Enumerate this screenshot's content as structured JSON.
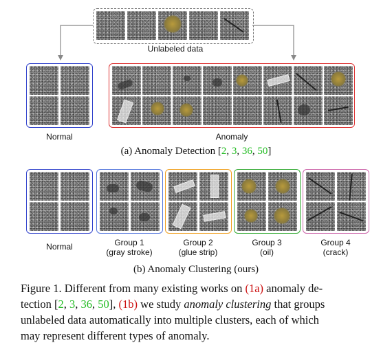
{
  "top": {
    "label": "Unlabeled data"
  },
  "detection": {
    "normal_label": "Normal",
    "anomaly_label": "Anomaly",
    "caption": "(a) Anomaly Detection [",
    "caption_end": "]",
    "citations": [
      "2",
      "3",
      "36",
      "50"
    ]
  },
  "clustering": {
    "normal_label": "Normal",
    "groups": [
      {
        "line1": "Group 1",
        "line2": "(gray stroke)"
      },
      {
        "line1": "Group 2",
        "line2": "(glue strip)"
      },
      {
        "line1": "Group 3",
        "line2": "(oil)"
      },
      {
        "line1": "Group 4",
        "line2": "(crack)"
      }
    ],
    "caption": "(b) Anomaly Clustering (ours)"
  },
  "figure_caption": {
    "fig_label": "Figure 1.",
    "p1": " Different from many existing works on ",
    "ref_a": "(1a)",
    "p2": " anomaly de-",
    "p3": "tection [",
    "p4": "], ",
    "ref_b": "(1b)",
    "p5": " we study ",
    "emph": "anomaly clustering",
    "p6": " that groups",
    "line3": "unlabeled data automatically into multiple clusters, each of which",
    "line4": "may represent different types of anomaly."
  },
  "colors": {
    "normal_box": "#3344cc",
    "anomaly_box": "#dd3333",
    "group1_box": "#5577dd",
    "group2_box": "#f0a020",
    "group3_box": "#33aa33",
    "group4_box": "#cc66aa",
    "citation": "#22bb22",
    "reference": "#cc1111"
  }
}
